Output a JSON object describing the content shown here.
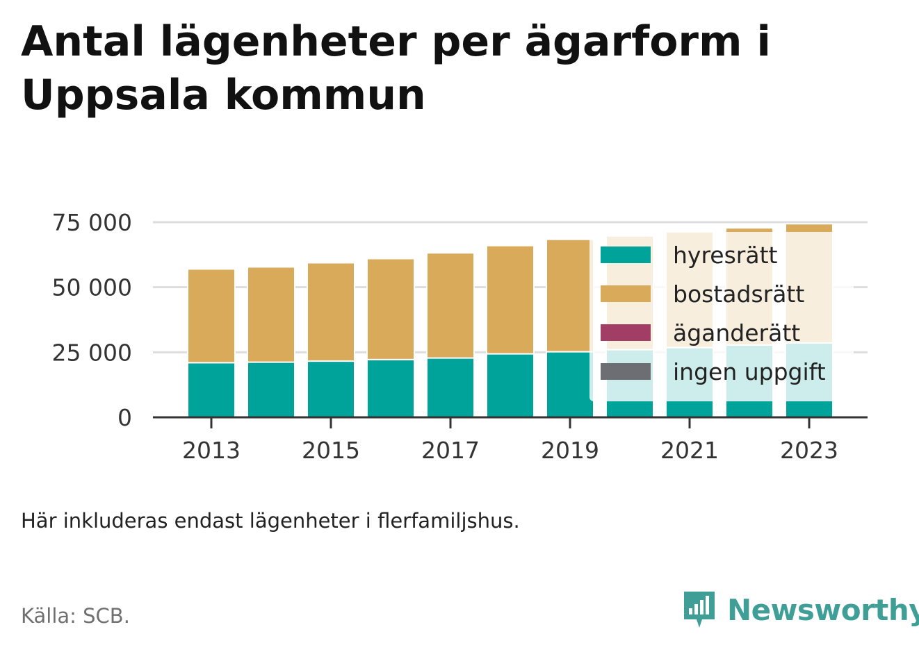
{
  "title": "Antal lägenheter per ägarform i Uppsala kommun",
  "note": "Här inkluderas endast lägenheter i flerfamiljshus.",
  "source": "Källa: SCB.",
  "brand": "Newsworthy",
  "colors": {
    "hyresratt": "#00a39a",
    "bostadsratt": "#d9aa59",
    "aganderatt": "#a23e66",
    "ingen_uppgift": "#6d6d74",
    "grid": "#dddddd",
    "axis": "#333333",
    "brand": "#3f9f97"
  },
  "chart_data": {
    "type": "bar",
    "stacked": true,
    "x": [
      2013,
      2014,
      2015,
      2016,
      2017,
      2018,
      2019,
      2020,
      2021,
      2022,
      2023
    ],
    "x_tick_labels": [
      "2013",
      "2015",
      "2017",
      "2019",
      "2021",
      "2023"
    ],
    "y_tick_labels": [
      "0",
      "25 000",
      "50 000",
      "75 000"
    ],
    "y_ticks": [
      0,
      25000,
      50000,
      75000
    ],
    "ylim": [
      0,
      75000
    ],
    "grid": true,
    "legend_position": "top-right",
    "series": [
      {
        "name": "hyresrätt",
        "color": "#00a39a",
        "values": [
          21000,
          21200,
          21600,
          22200,
          22800,
          24400,
          25200,
          26000,
          26800,
          27800,
          28600
        ]
      },
      {
        "name": "bostadsrätt",
        "color": "#d9aa59",
        "values": [
          36000,
          36600,
          37800,
          38800,
          40400,
          41600,
          43200,
          43700,
          44500,
          45000,
          45800
        ]
      },
      {
        "name": "äganderätt",
        "color": "#a23e66",
        "values": [
          0,
          0,
          0,
          0,
          0,
          0,
          0,
          0,
          0,
          0,
          0
        ]
      },
      {
        "name": "ingen uppgift",
        "color": "#6d6d74",
        "values": [
          0,
          0,
          0,
          0,
          0,
          0,
          0,
          0,
          0,
          0,
          0
        ]
      }
    ]
  }
}
